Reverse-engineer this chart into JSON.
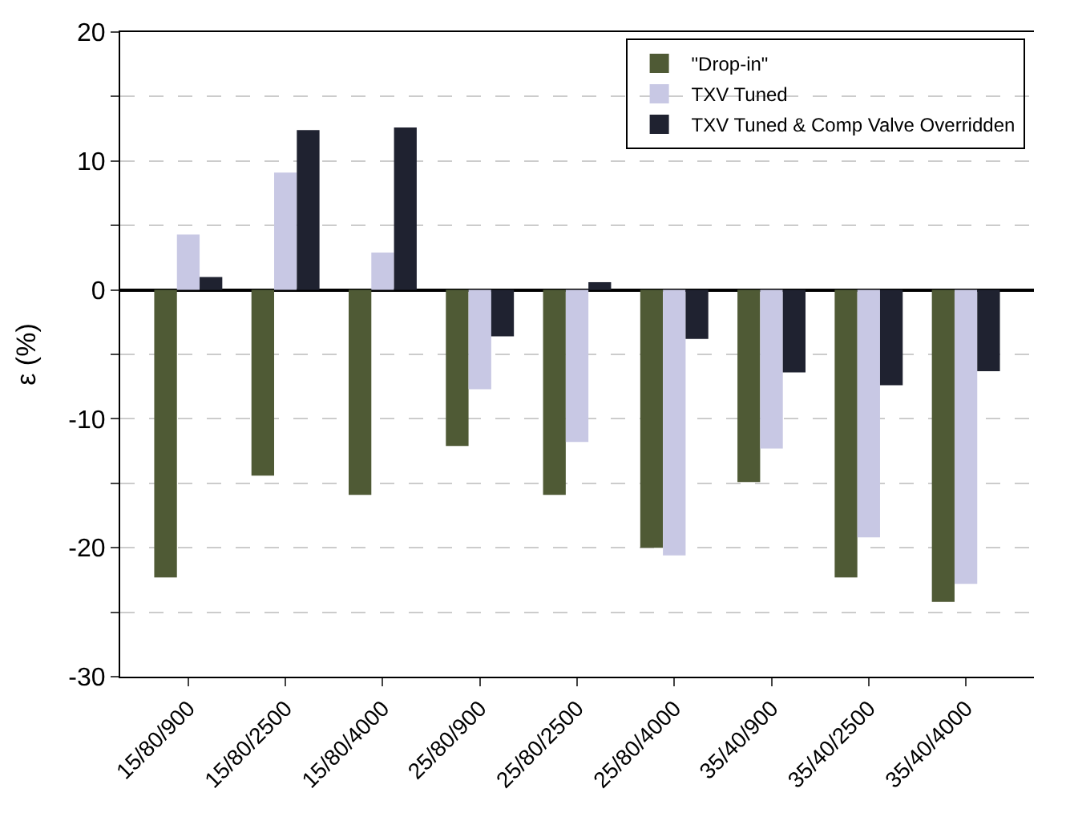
{
  "chart_data": {
    "type": "bar",
    "ylabel": "ε (%)",
    "categories": [
      "15/80/900",
      "15/80/2500",
      "15/80/4000",
      "25/80/900",
      "25/80/2500",
      "25/80/4000",
      "35/40/900",
      "35/40/2500",
      "35/40/4000"
    ],
    "series": [
      {
        "name": "\"Drop-in\"",
        "color": "#4f5a35",
        "values": [
          -22.3,
          -14.4,
          -15.9,
          -12.1,
          -15.9,
          -20.0,
          -14.9,
          -22.3,
          -24.2
        ]
      },
      {
        "name": "TXV Tuned",
        "color": "#c8c8e4",
        "values": [
          4.3,
          9.1,
          2.9,
          -7.7,
          -11.8,
          -20.6,
          -12.3,
          -19.2,
          -22.8
        ]
      },
      {
        "name": "TXV Tuned & Comp Valve Overridden",
        "color": "#1f2230",
        "values": [
          1.0,
          12.4,
          12.6,
          -3.6,
          0.6,
          -3.8,
          -6.4,
          -7.4,
          -6.3
        ]
      }
    ],
    "ylim": [
      -30,
      20
    ],
    "yticks": [
      -30,
      {
        "value": -25,
        "label": null
      },
      -20,
      {
        "value": -15,
        "label": null
      },
      -10,
      {
        "value": -5,
        "label": null
      },
      0,
      {
        "value": 5,
        "label": null
      },
      10,
      {
        "value": 15,
        "label": null
      },
      20
    ],
    "grid": "y",
    "legend": "top right"
  }
}
